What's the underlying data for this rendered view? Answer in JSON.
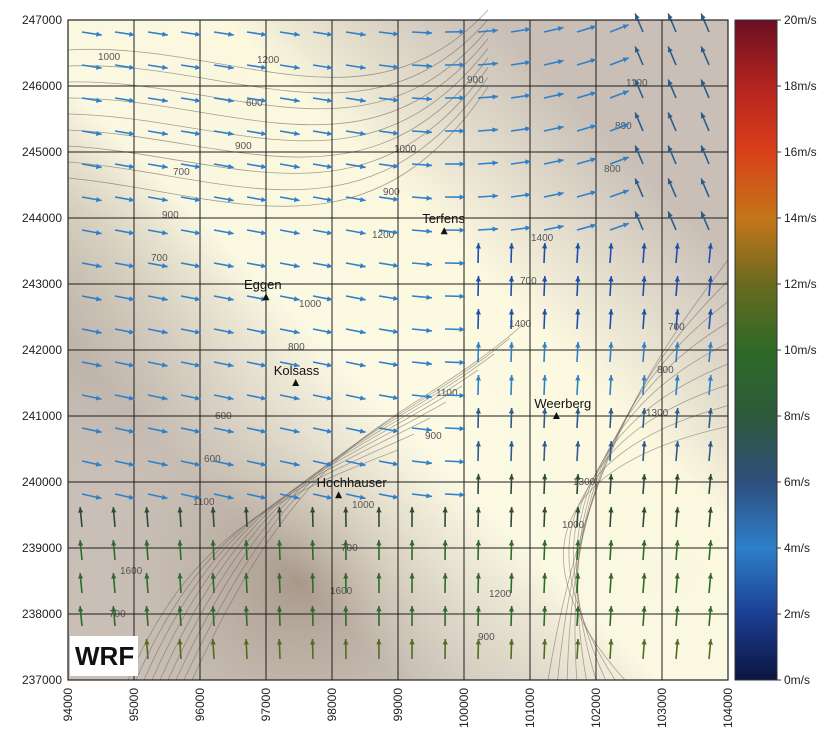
{
  "map": {
    "model_label": "WRF",
    "x_ticks": [
      "94000",
      "95000",
      "96000",
      "97000",
      "98000",
      "99000",
      "100000",
      "101000",
      "102000",
      "103000",
      "104000"
    ],
    "y_ticks": [
      "247000",
      "246000",
      "245000",
      "244000",
      "243000",
      "242000",
      "241000",
      "240000",
      "239000",
      "238000",
      "237000"
    ],
    "places": [
      {
        "name": "Terfens",
        "x": 99700,
        "y": 243800
      },
      {
        "name": "Eggen",
        "x": 97000,
        "y": 242800
      },
      {
        "name": "Kolsass",
        "x": 97450,
        "y": 241500
      },
      {
        "name": "Weerberg",
        "x": 101400,
        "y": 241000
      },
      {
        "name": "Hochhauser",
        "x": 98100,
        "y": 239800
      }
    ],
    "contour_labels": [
      "1000",
      "900",
      "1200",
      "1400",
      "1300",
      "1100",
      "1600",
      "900",
      "800",
      "700",
      "800",
      "900",
      "1000",
      "700",
      "600",
      "900",
      "700",
      "800",
      "600",
      "700",
      "900",
      "800",
      "900",
      "1000",
      "1100",
      "1300",
      "1600",
      "1200",
      "1000",
      "1400",
      "700",
      "600",
      "1000",
      "1200",
      "1100",
      "700"
    ],
    "colorbar": {
      "ticks": [
        "20m/s",
        "18m/s",
        "16m/s",
        "14m/s",
        "12m/s",
        "10m/s",
        "8m/s",
        "6m/s",
        "4m/s",
        "2m/s",
        "0m/s"
      ],
      "range": [
        0,
        20
      ],
      "colors": [
        "#101a4a",
        "#1f4fa8",
        "#2f80c9",
        "#2c5c8a",
        "#2f4a3a",
        "#2f6a2a",
        "#556b1f",
        "#b5731a",
        "#d94a12",
        "#c0271c",
        "#7a1024"
      ]
    },
    "xlim": [
      94000,
      104000
    ],
    "ylim": [
      237000,
      247000
    ]
  }
}
